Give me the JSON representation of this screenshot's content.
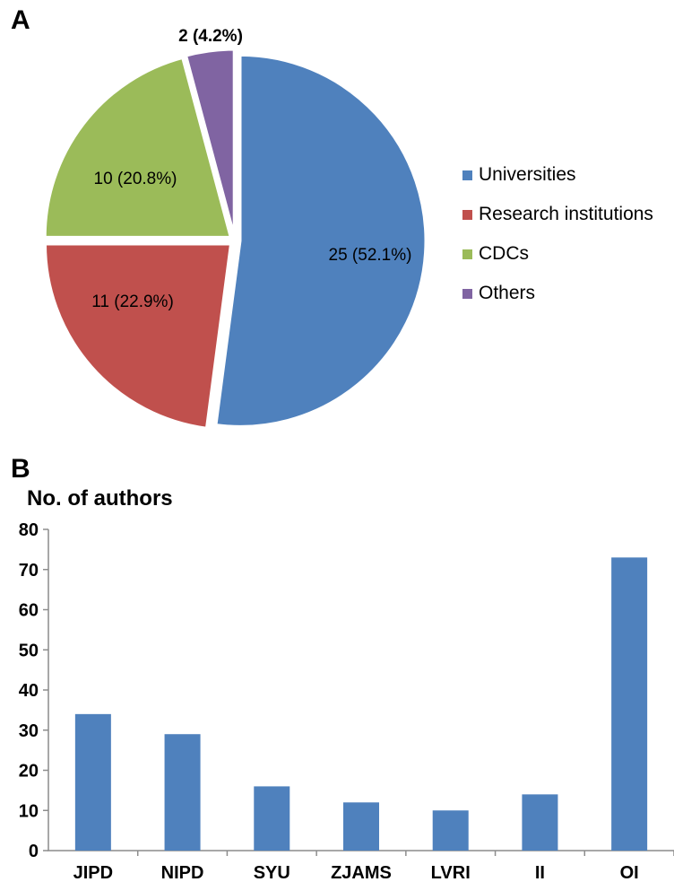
{
  "panel_a": {
    "letter": "A"
  },
  "panel_b": {
    "letter": "B"
  },
  "chart_data": [
    {
      "type": "pie",
      "categories": [
        "Universities",
        "Research institutions",
        "CDCs",
        "Others"
      ],
      "values": [
        25,
        11,
        10,
        2
      ],
      "data_labels": [
        "25 (52.1%)",
        "11 (22.9%)",
        "10 (20.8%)",
        "2 (4.2%)"
      ],
      "colors": [
        "#4f81bd",
        "#c0504d",
        "#9bbb59",
        "#8064a2"
      ],
      "legend": "right",
      "title": ""
    },
    {
      "type": "bar",
      "categories": [
        "JIPD",
        "NIPD",
        "SYU",
        "ZJAMS",
        "LVRI",
        "II",
        "OI"
      ],
      "values": [
        34,
        29,
        16,
        12,
        10,
        14,
        73
      ],
      "ylabel": "No. of authors",
      "xlabel": "",
      "ylim": [
        0,
        80
      ],
      "yticks": [
        0,
        10,
        20,
        30,
        40,
        50,
        60,
        70,
        80
      ],
      "color": "#4f81bd",
      "grid": false
    }
  ]
}
